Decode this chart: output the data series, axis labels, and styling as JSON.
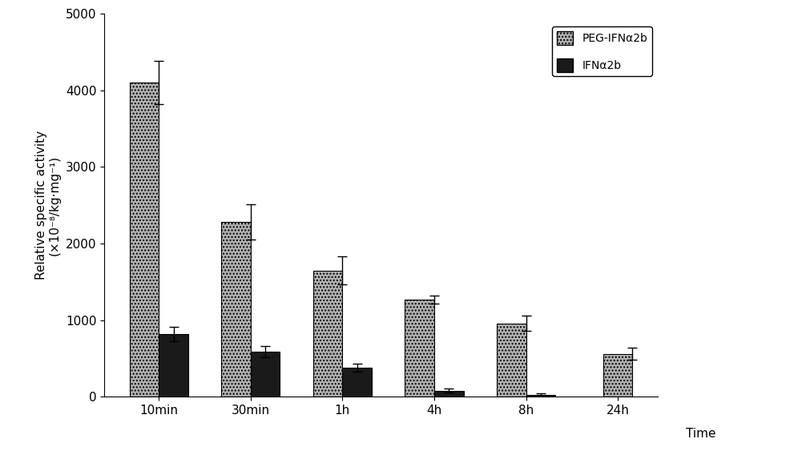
{
  "categories": [
    "10min",
    "30min",
    "1h",
    "4h",
    "8h",
    "24h"
  ],
  "peg_values": [
    4100,
    2280,
    1650,
    1270,
    960,
    560
  ],
  "ifn_values": [
    820,
    590,
    380,
    80,
    30,
    null
  ],
  "peg_errors": [
    280,
    230,
    180,
    55,
    100,
    80
  ],
  "ifn_errors": [
    95,
    75,
    50,
    25,
    20,
    null
  ],
  "ylabel_line1": "Relative specific activity",
  "ylabel_line2": "(×10⁻⁸/kg·mg⁻¹)",
  "xlabel": "Time",
  "ylim": [
    0,
    5000
  ],
  "yticks": [
    0,
    1000,
    2000,
    3000,
    4000,
    5000
  ],
  "legend_peg": "PEG-IFNα2b",
  "legend_ifn": "IFNα2b",
  "bar_width": 0.32,
  "peg_color": "#b0b0b0",
  "peg_hatch": "....",
  "ifn_color": "#1a1a1a",
  "ifn_hatch": "",
  "bg_color": "#ffffff",
  "tick_fontsize": 11,
  "label_fontsize": 11
}
